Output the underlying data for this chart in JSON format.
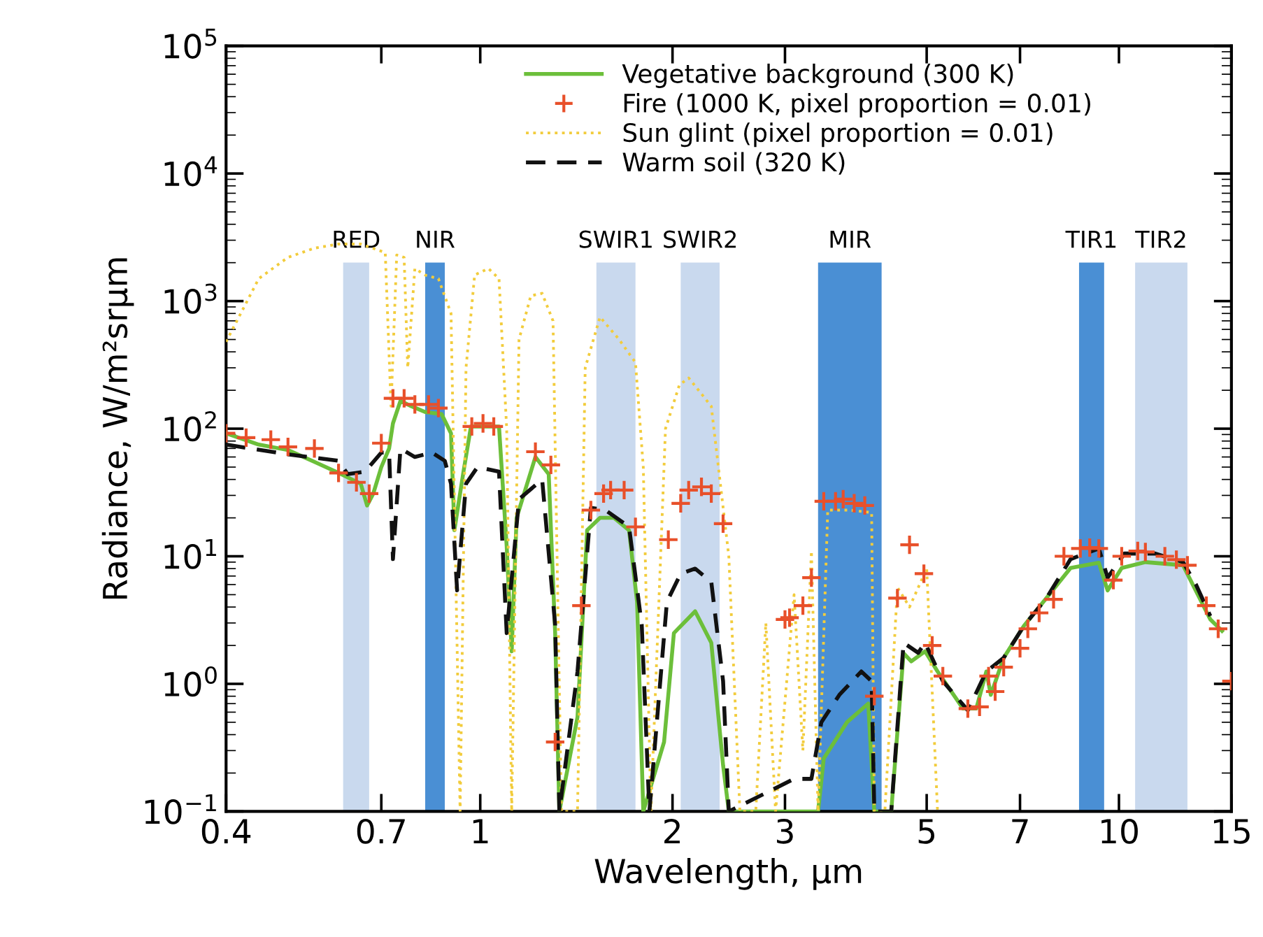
{
  "chart_data": {
    "type": "line",
    "xlabel": "Wavelength, μm",
    "ylabel": "Radiance, W/m²srμm",
    "log": "xy",
    "grid": false,
    "legend": "top",
    "xlim": [
      0.4,
      15
    ],
    "xticks": [
      0.4,
      0.7,
      1,
      2,
      3,
      5,
      7,
      10,
      15
    ],
    "ylim": [
      0.1,
      100000
    ],
    "yticks": [
      {
        "value": 0.1,
        "label": "10$^{−1}$"
      },
      {
        "value": 1,
        "label": "10$^{0}$"
      },
      {
        "value": 10,
        "label": "10$^{1}$"
      },
      {
        "value": 100,
        "label": "10$^{2}$"
      },
      {
        "value": 1000,
        "label": "10$^{3}$"
      },
      {
        "value": 10000,
        "label": "10$^{4}$"
      },
      {
        "value": 100000,
        "label": "10$^{5}$"
      }
    ],
    "bands": [
      {
        "axis": "x",
        "from": 0.61,
        "to": 0.67,
        "label": "RED",
        "color": "#c9d9ee"
      },
      {
        "axis": "x",
        "from": 0.82,
        "to": 0.88,
        "label": "NIR",
        "color": "#4a8fd4"
      },
      {
        "axis": "x",
        "from": 1.52,
        "to": 1.75,
        "label": "SWIR1",
        "color": "#c9d9ee"
      },
      {
        "axis": "x",
        "from": 2.06,
        "to": 2.37,
        "label": "SWIR2",
        "color": "#c9d9ee"
      },
      {
        "axis": "x",
        "from": 3.38,
        "to": 4.25,
        "label": "MIR",
        "color": "#4a8fd4"
      },
      {
        "axis": "x",
        "from": 8.66,
        "to": 9.48,
        "label": "TIR1",
        "color": "#4a8fd4"
      },
      {
        "axis": "x",
        "from": 10.6,
        "to": 12.8,
        "label": "TIR2",
        "color": "#c9d9ee"
      }
    ],
    "series": [
      {
        "name": "Vegetative background (300 K)",
        "type": "line",
        "color": "#6cbf3a",
        "line_style": "solid",
        "x": [
          0.4,
          0.45,
          0.5,
          0.55,
          0.6,
          0.65,
          0.665,
          0.68,
          0.7,
          0.72,
          0.73,
          0.75,
          0.78,
          0.82,
          0.87,
          0.9,
          0.911,
          0.94,
          0.967,
          1.0,
          1.07,
          1.1,
          1.12,
          1.14,
          1.22,
          1.28,
          1.31,
          1.33,
          1.42,
          1.47,
          1.54,
          1.62,
          1.71,
          1.76,
          1.8,
          1.94,
          2.01,
          2.17,
          2.3,
          2.4,
          2.45,
          3.38,
          3.45,
          3.75,
          4.05,
          4.14,
          4.4,
          4.6,
          4.73,
          4.97,
          5.2,
          5.7,
          5.98,
          6.2,
          6.3,
          6.6,
          7.1,
          7.7,
          8.4,
          9.3,
          9.6,
          10.1,
          11.0,
          12.6,
          13.9,
          14.5
        ],
        "values": [
          92,
          75,
          68,
          55,
          45,
          37,
          25,
          31,
          50,
          70,
          110,
          165,
          150,
          135,
          130,
          92,
          16,
          44,
          104,
          104,
          104,
          12,
          1.8,
          20,
          60,
          44,
          2.5,
          0.1,
          0.55,
          16,
          20,
          20,
          16,
          4.4,
          0.1,
          0.35,
          2.5,
          3.7,
          2.1,
          0.23,
          0.1,
          0.1,
          0.26,
          0.5,
          0.7,
          0.1,
          0.1,
          1.74,
          1.5,
          1.8,
          1.25,
          0.64,
          0.64,
          1.25,
          0.82,
          1.6,
          2.85,
          4.7,
          8.1,
          8.9,
          5.4,
          8.1,
          9.0,
          8.5,
          3.2,
          2.6
        ]
      },
      {
        "name": "Fire (1000 K, pixel proportion = 0.01)",
        "type": "scatter",
        "marker": "cross",
        "color": "#e8502a",
        "x": [
          0.4,
          0.43,
          0.47,
          0.5,
          0.55,
          0.6,
          0.64,
          0.67,
          0.7,
          0.73,
          0.76,
          0.79,
          0.83,
          0.86,
          0.97,
          1.01,
          1.05,
          1.22,
          1.29,
          1.31,
          1.44,
          1.49,
          1.56,
          1.6,
          1.68,
          1.75,
          1.97,
          2.06,
          2.12,
          2.22,
          2.3,
          2.4,
          3.0,
          3.05,
          3.2,
          3.3,
          3.45,
          3.6,
          3.7,
          3.85,
          4.0,
          4.14,
          4.5,
          4.7,
          4.95,
          5.1,
          5.3,
          5.8,
          6.05,
          6.25,
          6.4,
          6.6,
          7.0,
          7.2,
          7.5,
          7.9,
          8.2,
          8.7,
          9.0,
          9.3,
          9.8,
          10.1,
          10.7,
          11.0,
          11.8,
          12.3,
          12.8,
          13.7,
          14.3,
          15
        ],
        "values": [
          92,
          85,
          82,
          72,
          70,
          45,
          38,
          31,
          77,
          173,
          173,
          155,
          155,
          145,
          104,
          110,
          104,
          66,
          52,
          0.35,
          4.1,
          23,
          31,
          33,
          33,
          17,
          13.5,
          26,
          33,
          35,
          31,
          18,
          3.2,
          3.3,
          4.1,
          6.8,
          27,
          27,
          28,
          26,
          25,
          0.8,
          4.7,
          12.3,
          7.3,
          2.0,
          1.15,
          0.64,
          0.66,
          1.15,
          0.87,
          1.35,
          1.9,
          2.7,
          3.6,
          4.6,
          10,
          11.5,
          11.7,
          11.5,
          6.5,
          10,
          11,
          10.8,
          10,
          9.4,
          8.5,
          4.1,
          2.7,
          1.05
        ]
      },
      {
        "name": "Sun glint (pixel proportion = 0.01)",
        "type": "line",
        "color": "#f2cc3c",
        "line_style": "dotted",
        "x": [
          0.4,
          0.45,
          0.5,
          0.55,
          0.6,
          0.65,
          0.71,
          0.725,
          0.74,
          0.76,
          0.77,
          0.79,
          0.82,
          0.86,
          0.9,
          0.93,
          0.95,
          0.98,
          1.03,
          1.07,
          1.1,
          1.12,
          1.15,
          1.2,
          1.25,
          1.3,
          1.34,
          1.42,
          1.46,
          1.54,
          1.65,
          1.75,
          1.8,
          1.85,
          1.95,
          2.05,
          2.12,
          2.3,
          2.45,
          2.55,
          2.7,
          2.8,
          2.9,
          3.1,
          3.2,
          3.3,
          3.38,
          3.5,
          3.8,
          4.1,
          4.14,
          4.3,
          4.5,
          4.7,
          5.0,
          5.2
        ],
        "values": [
          480,
          1500,
          2200,
          2600,
          2800,
          2800,
          2400,
          150,
          2300,
          2200,
          300,
          1800,
          1600,
          1500,
          800,
          0.1,
          300,
          1600,
          1800,
          1500,
          100,
          0.1,
          500,
          1100,
          1150,
          700,
          0.1,
          0.1,
          300,
          750,
          500,
          330,
          50,
          0.1,
          100,
          220,
          250,
          150,
          10,
          0.1,
          0.1,
          3,
          0.1,
          5,
          0.3,
          11,
          0.1,
          23,
          23,
          22,
          0.1,
          0.1,
          5.7,
          4,
          8,
          0.1
        ]
      },
      {
        "name": "Warm soil (320 K)",
        "type": "line",
        "color": "#111111",
        "line_style": "dashed",
        "x": [
          0.4,
          0.5,
          0.6,
          0.62,
          0.66,
          0.7,
          0.72,
          0.73,
          0.75,
          0.79,
          0.84,
          0.88,
          0.9,
          0.92,
          0.95,
          0.99,
          1.07,
          1.1,
          1.15,
          1.25,
          1.31,
          1.33,
          1.42,
          1.49,
          1.57,
          1.71,
          1.79,
          1.84,
          1.96,
          2.06,
          2.17,
          2.3,
          2.4,
          2.45,
          3.1,
          3.3,
          3.42,
          3.65,
          3.95,
          4.1,
          4.14,
          4.4,
          4.6,
          4.85,
          4.97,
          5.3,
          5.8,
          6.2,
          6.6,
          7.1,
          7.7,
          8.4,
          9.3,
          9.6,
          10.2,
          11.4,
          12.6,
          13.2,
          13.9
        ],
        "values": [
          75,
          63,
          56,
          44,
          46,
          65,
          65,
          9.5,
          70,
          60,
          65,
          56,
          37,
          5.4,
          37,
          50,
          46,
          2.5,
          28,
          40,
          2.9,
          0.1,
          1.25,
          24,
          23,
          17,
          2.9,
          0.1,
          4.4,
          7.3,
          8,
          6.3,
          1.05,
          0.1,
          0.18,
          0.18,
          0.5,
          0.82,
          1.25,
          1.05,
          0.1,
          0.1,
          2.1,
          1.75,
          2.1,
          1.05,
          0.62,
          1.25,
          1.6,
          2.85,
          4.7,
          9.5,
          11.5,
          6.8,
          10.5,
          10.5,
          9.0,
          6,
          3.4
        ]
      }
    ]
  }
}
